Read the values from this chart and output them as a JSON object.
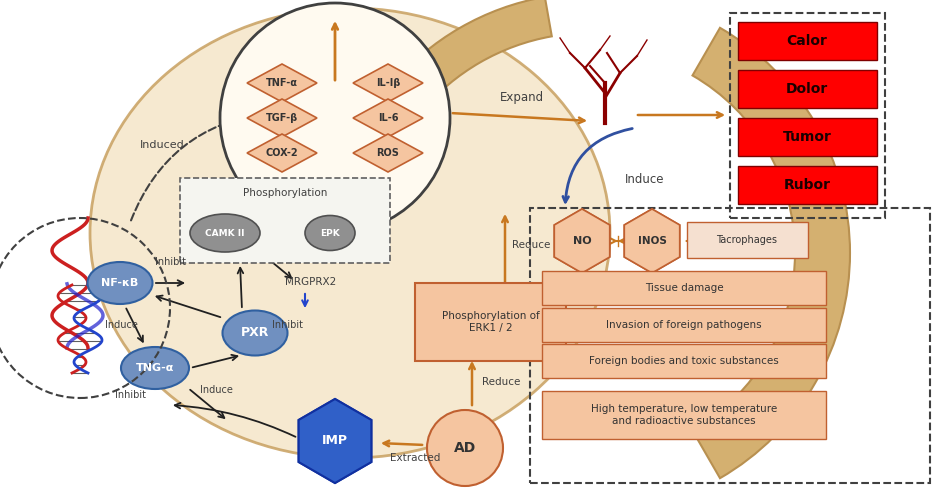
{
  "bg_color": "#ffffff",
  "cell_color": "#f5e6c8",
  "salmon_color": "#f0a070",
  "light_salmon": "#f5c5a0",
  "blue_oval": "#7090c0",
  "gray_oval": "#909090",
  "red_box": "#ff0000",
  "orange_arrow": "#c87820",
  "blue_arrow": "#3050a0",
  "dark_border": "#404040",
  "cytokines": [
    "TNF-α",
    "IL-Iβ",
    "TGF-β",
    "IL-6",
    "COX-2",
    "ROS"
  ],
  "red_labels": [
    "Calor",
    "Dolor",
    "Tumor",
    "Rubor"
  ],
  "damage_labels": [
    "Tissue damage",
    "Invasion of foreign pathogens",
    "Foreign bodies and toxic substances",
    "High temperature, low temperature\nand radioactive substances"
  ],
  "blue_ovals": [
    "NF-κB",
    "TNG-α"
  ],
  "gray_ovals": [
    "CAMK II",
    "EPK"
  ],
  "star_labels": [
    "NO",
    "INOS"
  ]
}
